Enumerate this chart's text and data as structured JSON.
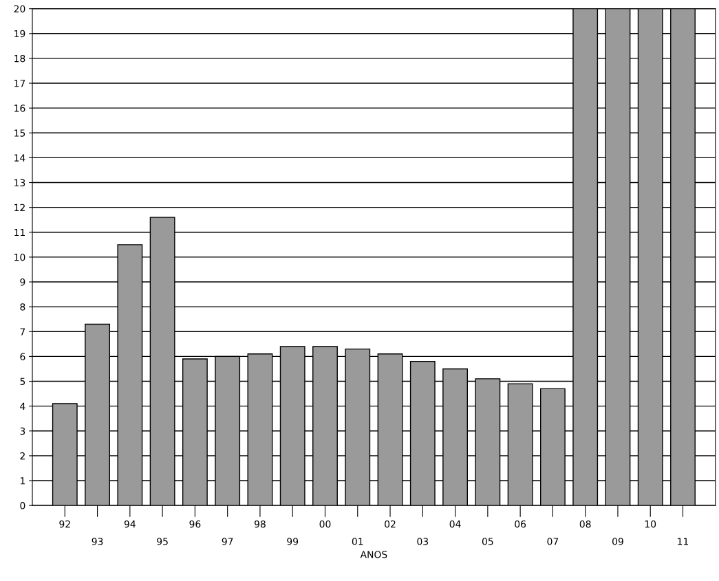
{
  "chart_data": {
    "type": "bar",
    "xlabel": "ANOS",
    "categories": [
      "92",
      "93",
      "94",
      "95",
      "96",
      "97",
      "98",
      "99",
      "00",
      "01",
      "02",
      "03",
      "04",
      "05",
      "06",
      "07",
      "08",
      "09",
      "10",
      "11"
    ],
    "values": [
      4.1,
      7.3,
      10.5,
      11.6,
      5.9,
      6.0,
      6.1,
      6.4,
      6.4,
      6.3,
      6.1,
      5.8,
      5.5,
      5.1,
      4.9,
      4.7,
      20,
      20,
      20,
      20
    ],
    "color": "#9a9a9a",
    "ylim": [
      0,
      20
    ],
    "yticks": [
      0,
      1,
      2,
      3,
      4,
      5,
      6,
      7,
      8,
      9,
      10,
      11,
      12,
      13,
      14,
      15,
      16,
      17,
      18,
      19,
      20
    ],
    "grid": "y"
  }
}
